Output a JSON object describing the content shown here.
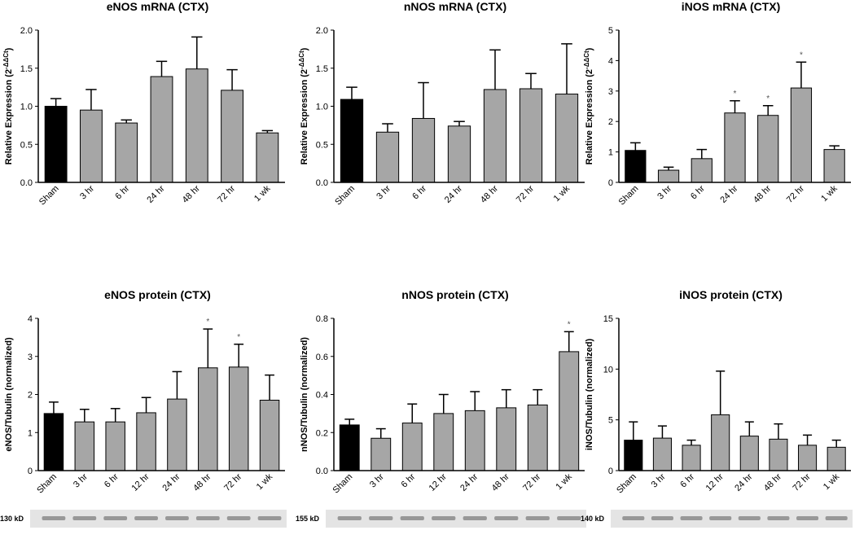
{
  "chart_data": [
    {
      "type": "bar",
      "title": "eNOS mRNA (CTX)",
      "ylabel": "Relative Expression (2",
      "ylabel_superscript": "-ΔΔCt",
      "ylabel_end": ")",
      "categories": [
        "Sham",
        "3 hr",
        "6 hr",
        "24 hr",
        "48 hr",
        "72 hr",
        "1 wk"
      ],
      "values": [
        1.0,
        0.95,
        0.78,
        1.39,
        1.49,
        1.21,
        0.65
      ],
      "errors": [
        0.1,
        0.27,
        0.04,
        0.2,
        0.42,
        0.27,
        0.03
      ],
      "significance": [
        null,
        null,
        null,
        null,
        null,
        null,
        null
      ],
      "colors": [
        "#000000",
        "#a6a6a6",
        "#a6a6a6",
        "#a6a6a6",
        "#a6a6a6",
        "#a6a6a6",
        "#a6a6a6"
      ],
      "ylim": [
        0,
        2
      ],
      "yticks": [
        {
          "value": 0,
          "label": "0.0"
        },
        {
          "value": 0.5,
          "label": "0.5"
        },
        {
          "value": 1,
          "label": "1.0"
        },
        {
          "value": 1.5,
          "label": "1.5"
        },
        {
          "value": 2,
          "label": "2.0"
        }
      ]
    },
    {
      "type": "bar",
      "title": "nNOS mRNA (CTX)",
      "ylabel": "Relative Expression (2",
      "ylabel_superscript": "-ΔΔCt",
      "ylabel_end": ")",
      "categories": [
        "Sham",
        "3 hr",
        "6 hr",
        "24 hr",
        "48 hr",
        "72 hr",
        "1 wk"
      ],
      "values": [
        1.09,
        0.66,
        0.84,
        0.74,
        1.22,
        1.23,
        1.16
      ],
      "errors": [
        0.16,
        0.11,
        0.47,
        0.06,
        0.52,
        0.2,
        0.66
      ],
      "significance": [
        null,
        null,
        null,
        null,
        null,
        null,
        null
      ],
      "colors": [
        "#000000",
        "#a6a6a6",
        "#a6a6a6",
        "#a6a6a6",
        "#a6a6a6",
        "#a6a6a6",
        "#a6a6a6"
      ],
      "ylim": [
        0,
        2
      ],
      "yticks": [
        {
          "value": 0,
          "label": "0.0"
        },
        {
          "value": 0.5,
          "label": "0.5"
        },
        {
          "value": 1,
          "label": "1.0"
        },
        {
          "value": 1.5,
          "label": "1.5"
        },
        {
          "value": 2,
          "label": "2.0"
        }
      ]
    },
    {
      "type": "bar",
      "title": "iNOS mRNA (CTX)",
      "ylabel": "Relative Expression (2",
      "ylabel_superscript": "-ΔΔCt",
      "ylabel_end": ")",
      "categories": [
        "Sham",
        "3 hr",
        "6 hr",
        "24 hr",
        "48 hr",
        "72 hr",
        "1 wk"
      ],
      "values": [
        1.05,
        0.4,
        0.78,
        2.28,
        2.2,
        3.1,
        1.08
      ],
      "errors": [
        0.25,
        0.1,
        0.3,
        0.4,
        0.32,
        0.85,
        0.12
      ],
      "significance": [
        null,
        null,
        null,
        "*",
        "*",
        "*",
        null
      ],
      "colors": [
        "#000000",
        "#a6a6a6",
        "#a6a6a6",
        "#a6a6a6",
        "#a6a6a6",
        "#a6a6a6",
        "#a6a6a6"
      ],
      "ylim": [
        0,
        5
      ],
      "yticks": [
        0,
        1,
        2,
        3,
        4,
        5
      ]
    },
    {
      "type": "bar",
      "title": "eNOS protein (CTX)",
      "ylabel": "eNOS/Tubulin (normalized)",
      "blot_label": "130 kD",
      "categories": [
        "Sham",
        "3 hr",
        "6 hr",
        "12 hr",
        "24 hr",
        "48 hr",
        "72 hr",
        "1 wk"
      ],
      "values": [
        1.5,
        1.28,
        1.28,
        1.52,
        1.88,
        2.7,
        2.72,
        1.85
      ],
      "errors": [
        0.3,
        0.33,
        0.35,
        0.4,
        0.72,
        1.02,
        0.6,
        0.66
      ],
      "significance": [
        null,
        null,
        null,
        null,
        null,
        "*",
        "*",
        null
      ],
      "colors": [
        "#000000",
        "#a6a6a6",
        "#a6a6a6",
        "#a6a6a6",
        "#a6a6a6",
        "#a6a6a6",
        "#a6a6a6",
        "#a6a6a6"
      ],
      "ylim": [
        0,
        4
      ],
      "yticks": [
        0,
        1,
        2,
        3,
        4
      ]
    },
    {
      "type": "bar",
      "title": "nNOS protein (CTX)",
      "ylabel": "nNOS/Tubulin (normalized)",
      "blot_label": "155 kD",
      "categories": [
        "Sham",
        "3 hr",
        "6 hr",
        "12 hr",
        "24 hr",
        "48 hr",
        "72 hr",
        "1 wk"
      ],
      "values": [
        0.24,
        0.17,
        0.25,
        0.3,
        0.315,
        0.33,
        0.345,
        0.625
      ],
      "errors": [
        0.03,
        0.05,
        0.1,
        0.1,
        0.1,
        0.095,
        0.08,
        0.105
      ],
      "significance": [
        null,
        null,
        null,
        null,
        null,
        null,
        null,
        "*"
      ],
      "colors": [
        "#000000",
        "#a6a6a6",
        "#a6a6a6",
        "#a6a6a6",
        "#a6a6a6",
        "#a6a6a6",
        "#a6a6a6",
        "#a6a6a6"
      ],
      "ylim": [
        0,
        0.8
      ],
      "yticks": [
        {
          "value": 0,
          "label": "0.0"
        },
        0.2,
        0.4,
        0.6,
        0.8
      ]
    },
    {
      "type": "bar",
      "title": "iNOS protein (CTX)",
      "ylabel": "iNOS/Tubulin (normalized)",
      "blot_label": "140 kD",
      "categories": [
        "Sham",
        "3 hr",
        "6 hr",
        "12 hr",
        "24 hr",
        "48 hr",
        "72 hr",
        "1 wk"
      ],
      "values": [
        3.0,
        3.2,
        2.5,
        5.5,
        3.4,
        3.1,
        2.5,
        2.3
      ],
      "errors": [
        1.8,
        1.2,
        0.5,
        4.3,
        1.4,
        1.5,
        1.0,
        0.7
      ],
      "significance": [
        null,
        null,
        null,
        null,
        null,
        null,
        null,
        null
      ],
      "colors": [
        "#000000",
        "#a6a6a6",
        "#a6a6a6",
        "#a6a6a6",
        "#a6a6a6",
        "#a6a6a6",
        "#a6a6a6",
        "#a6a6a6"
      ],
      "ylim": [
        0,
        15
      ],
      "yticks": [
        0,
        5,
        10,
        15
      ]
    }
  ]
}
